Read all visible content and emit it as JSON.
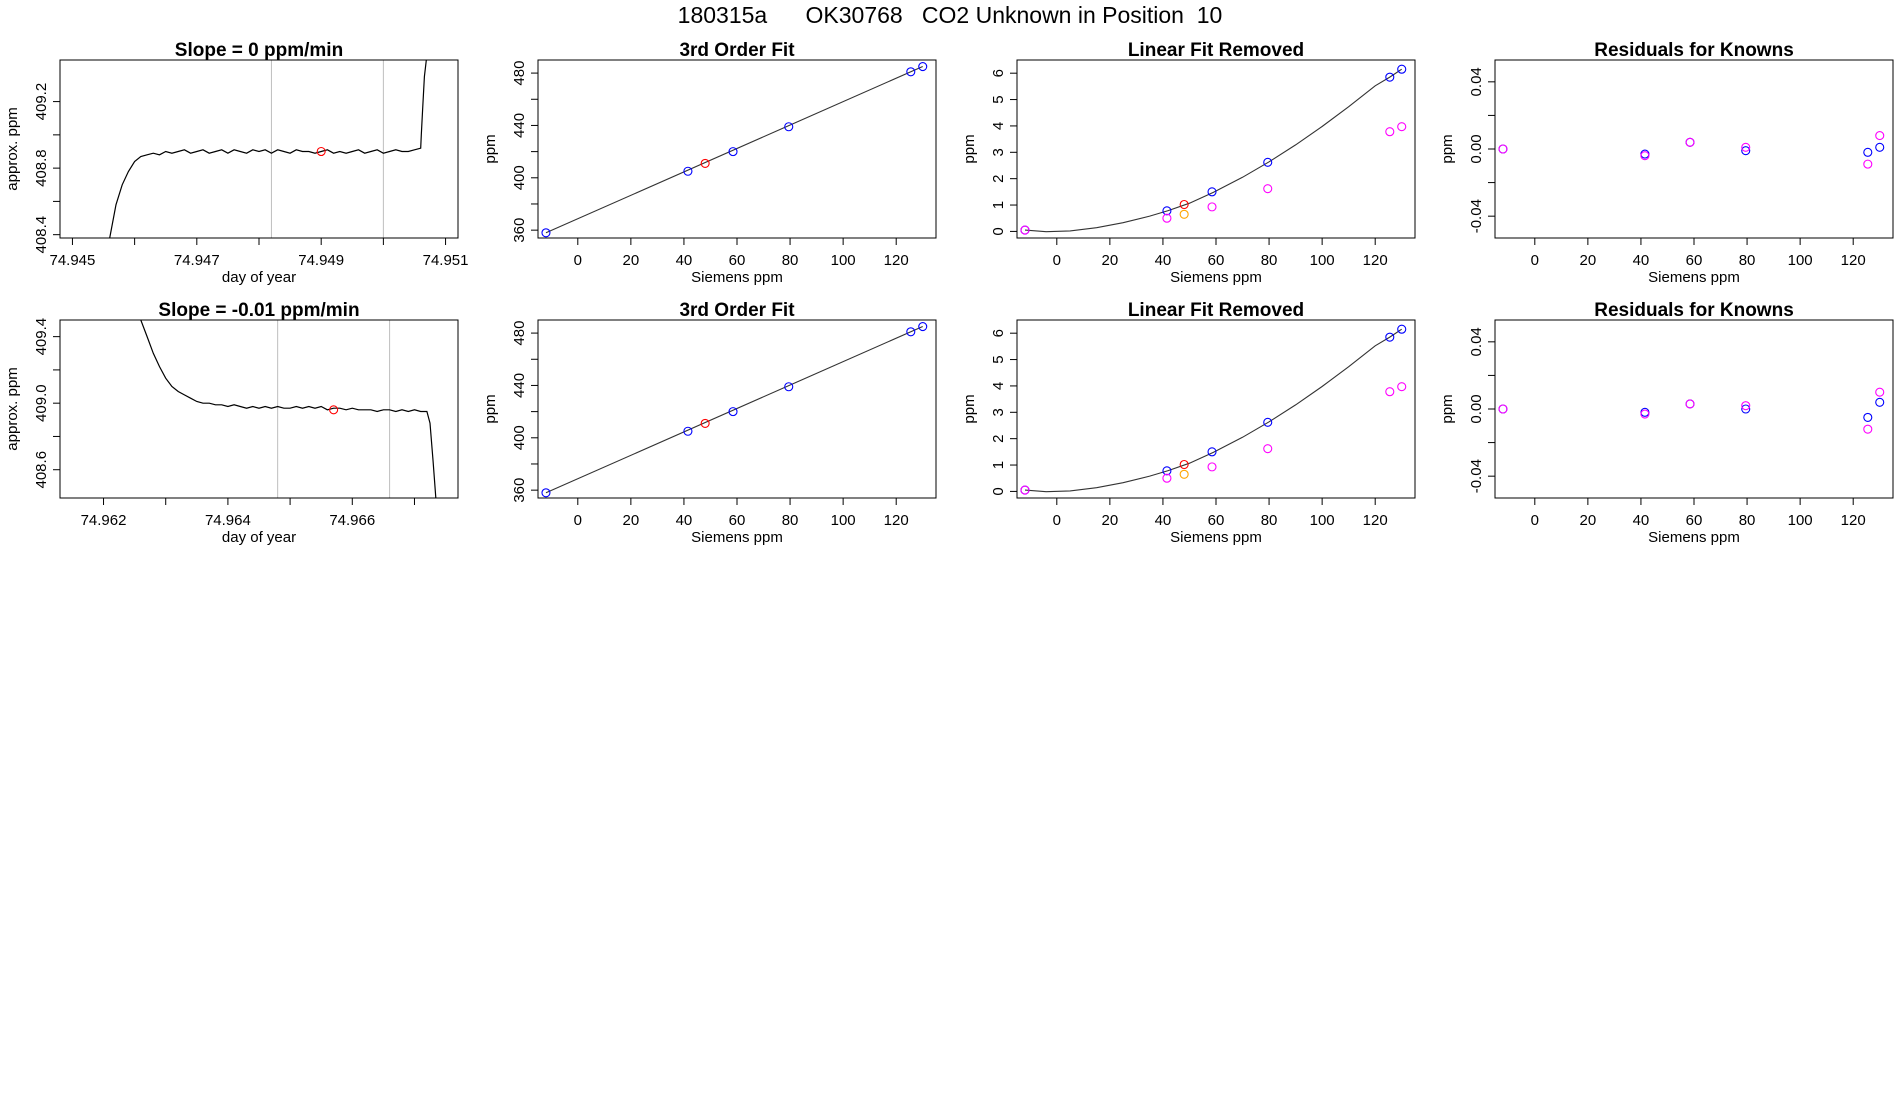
{
  "page": {
    "title": "180315a      OK30768   CO2 Unknown in Position  10"
  },
  "chart_data": [
    {
      "type": "line",
      "title": "Slope =  0  ppm/min",
      "xlabel": "day of year",
      "ylabel": "approx. ppm",
      "xlim": [
        74.9448,
        74.9512
      ],
      "ylim": [
        408.38,
        409.45
      ],
      "xticks": [
        74.945,
        74.947,
        74.949,
        74.951
      ],
      "xtick_labels": [
        "74.945",
        "74.947",
        "74.949",
        "74.951"
      ],
      "xticks_minor": [
        74.946,
        74.948,
        74.95
      ],
      "yticks": [
        408.4,
        408.8,
        409.2
      ],
      "ytick_labels": [
        "408.4",
        "408.8",
        "409.2"
      ],
      "yticks_minor": [
        408.6,
        409.0
      ],
      "vlines": [
        74.9482,
        74.95
      ],
      "vline_color": "#bebebe",
      "line_color": "#000000",
      "series": [
        {
          "x": [
            74.9456,
            74.9457,
            74.9458,
            74.9459,
            74.946,
            74.9461,
            74.9462,
            74.9463,
            74.9464,
            74.9465,
            74.9466,
            74.9467,
            74.9468,
            74.9469,
            74.947,
            74.9471,
            74.9472,
            74.9473,
            74.9474,
            74.9475,
            74.9476,
            74.9477,
            74.9478,
            74.9479,
            74.948,
            74.9481,
            74.9482,
            74.9483,
            74.9484,
            74.9485,
            74.9486,
            74.9487,
            74.9488,
            74.9489,
            74.949,
            74.9491,
            74.9492,
            74.9493,
            74.9494,
            74.9495,
            74.9496,
            74.9497,
            74.9498,
            74.9499,
            74.95,
            74.9501,
            74.9502,
            74.9503,
            74.9504,
            74.9505,
            74.9506,
            74.95061,
            74.95063,
            74.95066,
            74.9507
          ],
          "y": [
            408.38,
            408.58,
            408.7,
            408.78,
            408.84,
            408.87,
            408.88,
            408.89,
            408.88,
            408.9,
            408.89,
            408.9,
            408.91,
            408.89,
            408.9,
            408.91,
            408.89,
            408.9,
            408.91,
            408.89,
            408.91,
            408.9,
            408.89,
            408.91,
            408.9,
            408.91,
            408.89,
            408.91,
            408.9,
            408.89,
            408.91,
            408.9,
            408.9,
            408.89,
            408.9,
            408.91,
            408.89,
            408.9,
            408.89,
            408.9,
            408.91,
            408.89,
            408.9,
            408.91,
            408.89,
            408.9,
            408.91,
            408.9,
            408.9,
            408.91,
            408.92,
            409.0,
            409.15,
            409.35,
            409.48
          ]
        }
      ],
      "highlight_point": {
        "x": 74.949,
        "y": 408.9,
        "color": "#ff0000"
      }
    },
    {
      "type": "scatter",
      "title": "3rd Order Fit",
      "xlabel": "Siemens ppm",
      "ylabel": "ppm",
      "xlim": [
        -15,
        135
      ],
      "ylim": [
        354,
        490
      ],
      "xticks": [
        0,
        20,
        40,
        60,
        80,
        100,
        120
      ],
      "xtick_labels": [
        "0",
        "20",
        "40",
        "60",
        "80",
        "100",
        "120"
      ],
      "yticks": [
        360,
        400,
        440,
        480
      ],
      "ytick_labels": [
        "360",
        "400",
        "440",
        "480"
      ],
      "yticks_minor": [
        380,
        420,
        460
      ],
      "fit_curve": {
        "x": [
          -12,
          130
        ],
        "y": [
          358,
          485
        ]
      },
      "series": [
        {
          "color": "#0000ff",
          "x": [
            -12,
            41.5,
            58.5,
            79.5,
            125.5,
            130
          ],
          "y": [
            358,
            405,
            420,
            439,
            481,
            485
          ]
        },
        {
          "color": "#ff0000",
          "x": [
            48
          ],
          "y": [
            411
          ]
        }
      ]
    },
    {
      "type": "scatter",
      "title": "Linear Fit Removed",
      "xlabel": "Siemens ppm",
      "ylabel": "ppm",
      "xlim": [
        -15,
        135
      ],
      "ylim": [
        -0.25,
        6.5
      ],
      "xticks": [
        0,
        20,
        40,
        60,
        80,
        100,
        120
      ],
      "xtick_labels": [
        "0",
        "20",
        "40",
        "60",
        "80",
        "100",
        "120"
      ],
      "yticks": [
        0,
        1,
        2,
        3,
        4,
        5,
        6
      ],
      "ytick_labels": [
        "0",
        "1",
        "2",
        "3",
        "4",
        "5",
        "6"
      ],
      "fit_curve": {
        "x": [
          -12,
          -4,
          5,
          15,
          25,
          35,
          42,
          50,
          59,
          70,
          80,
          90,
          100,
          110,
          120,
          125.5,
          130
        ],
        "y": [
          0.05,
          -0.01,
          0.02,
          0.14,
          0.33,
          0.58,
          0.79,
          1.07,
          1.48,
          2.05,
          2.64,
          3.28,
          3.98,
          4.73,
          5.52,
          5.85,
          6.15
        ]
      },
      "series": [
        {
          "color": "#0000ff",
          "x": [
            -12,
            41.5,
            58.5,
            79.5,
            125.5,
            130
          ],
          "y": [
            0.05,
            0.78,
            1.5,
            2.62,
            5.85,
            6.15
          ]
        },
        {
          "color": "#ff00ff",
          "x": [
            -12,
            41.5,
            58.5,
            79.5,
            125.5,
            130
          ],
          "y": [
            0.05,
            0.5,
            0.93,
            1.62,
            3.78,
            3.97
          ]
        },
        {
          "color": "#ff0000",
          "x": [
            48
          ],
          "y": [
            1.02
          ]
        },
        {
          "color": "#ffa500",
          "x": [
            48
          ],
          "y": [
            0.65
          ]
        }
      ]
    },
    {
      "type": "scatter",
      "title": "Residuals for Knowns",
      "xlabel": "Siemens ppm",
      "ylabel": "ppm",
      "xlim": [
        -15,
        135
      ],
      "ylim": [
        -0.053,
        0.053
      ],
      "xticks": [
        0,
        20,
        40,
        60,
        80,
        100,
        120
      ],
      "xtick_labels": [
        "0",
        "20",
        "40",
        "60",
        "80",
        "100",
        "120"
      ],
      "yticks": [
        -0.04,
        0.0,
        0.04
      ],
      "ytick_labels": [
        "-0.04",
        "0.00",
        "0.04"
      ],
      "yticks_minor": [
        -0.02,
        0.02
      ],
      "series": [
        {
          "color": "#0000ff",
          "x": [
            -12,
            41.5,
            58.5,
            79.5,
            125.5,
            130
          ],
          "y": [
            0.0,
            -0.003,
            0.004,
            -0.001,
            -0.002,
            0.001
          ]
        },
        {
          "color": "#ff00ff",
          "x": [
            -12,
            41.5,
            58.5,
            79.5,
            125.5,
            130
          ],
          "y": [
            0.0,
            -0.004,
            0.004,
            0.001,
            -0.009,
            0.008
          ]
        }
      ]
    },
    {
      "type": "line",
      "title": "Slope =  -0.01  ppm/min",
      "xlabel": "day of year",
      "ylabel": "approx. ppm",
      "xlim": [
        74.9613,
        74.9677
      ],
      "ylim": [
        408.43,
        409.5
      ],
      "xticks": [
        74.962,
        74.964,
        74.966
      ],
      "xtick_labels": [
        "74.962",
        "74.964",
        "74.966"
      ],
      "xticks_minor": [
        74.963,
        74.965,
        74.967
      ],
      "yticks": [
        408.6,
        409.0,
        409.4
      ],
      "ytick_labels": [
        "408.6",
        "409.0",
        "409.4"
      ],
      "yticks_minor": [
        408.8,
        409.2
      ],
      "vlines": [
        74.9648,
        74.9666
      ],
      "vline_color": "#bebebe",
      "line_color": "#000000",
      "series": [
        {
          "x": [
            74.9626,
            74.9627,
            74.9628,
            74.9629,
            74.963,
            74.9631,
            74.9632,
            74.9633,
            74.9634,
            74.9635,
            74.9636,
            74.9637,
            74.9638,
            74.9639,
            74.964,
            74.9641,
            74.9642,
            74.9643,
            74.9644,
            74.9645,
            74.9646,
            74.9647,
            74.9648,
            74.9649,
            74.965,
            74.9651,
            74.9652,
            74.9653,
            74.9654,
            74.9655,
            74.9656,
            74.9657,
            74.9658,
            74.9659,
            74.966,
            74.9661,
            74.9662,
            74.9663,
            74.9664,
            74.9665,
            74.9666,
            74.9667,
            74.9668,
            74.9669,
            74.967,
            74.9671,
            74.9672,
            74.96725,
            74.9673,
            74.96735
          ],
          "y": [
            409.5,
            409.4,
            409.3,
            409.22,
            409.15,
            409.1,
            409.07,
            409.05,
            409.03,
            409.01,
            409.0,
            409.0,
            408.99,
            408.99,
            408.98,
            408.99,
            408.98,
            408.97,
            408.98,
            408.97,
            408.98,
            408.97,
            408.98,
            408.97,
            408.97,
            408.98,
            408.97,
            408.98,
            408.97,
            408.98,
            408.96,
            408.97,
            408.97,
            408.96,
            408.97,
            408.96,
            408.96,
            408.96,
            408.95,
            408.96,
            408.96,
            408.95,
            408.96,
            408.95,
            408.96,
            408.95,
            408.95,
            408.88,
            408.65,
            408.4
          ]
        }
      ],
      "highlight_point": {
        "x": 74.9657,
        "y": 408.96,
        "color": "#ff0000"
      }
    },
    {
      "type": "scatter",
      "title": "3rd Order Fit",
      "xlabel": "Siemens ppm",
      "ylabel": "ppm",
      "xlim": [
        -15,
        135
      ],
      "ylim": [
        354,
        490
      ],
      "xticks": [
        0,
        20,
        40,
        60,
        80,
        100,
        120
      ],
      "xtick_labels": [
        "0",
        "20",
        "40",
        "60",
        "80",
        "100",
        "120"
      ],
      "yticks": [
        360,
        400,
        440,
        480
      ],
      "ytick_labels": [
        "360",
        "400",
        "440",
        "480"
      ],
      "yticks_minor": [
        380,
        420,
        460
      ],
      "fit_curve": {
        "x": [
          -12,
          130
        ],
        "y": [
          358,
          485
        ]
      },
      "series": [
        {
          "color": "#0000ff",
          "x": [
            -12,
            41.5,
            58.5,
            79.5,
            125.5,
            130
          ],
          "y": [
            358,
            405,
            420,
            439,
            481,
            485
          ]
        },
        {
          "color": "#ff0000",
          "x": [
            48
          ],
          "y": [
            411
          ]
        }
      ]
    },
    {
      "type": "scatter",
      "title": "Linear Fit Removed",
      "xlabel": "Siemens ppm",
      "ylabel": "ppm",
      "xlim": [
        -15,
        135
      ],
      "ylim": [
        -0.25,
        6.5
      ],
      "xticks": [
        0,
        20,
        40,
        60,
        80,
        100,
        120
      ],
      "xtick_labels": [
        "0",
        "20",
        "40",
        "60",
        "80",
        "100",
        "120"
      ],
      "yticks": [
        0,
        1,
        2,
        3,
        4,
        5,
        6
      ],
      "ytick_labels": [
        "0",
        "1",
        "2",
        "3",
        "4",
        "5",
        "6"
      ],
      "fit_curve": {
        "x": [
          -12,
          -4,
          5,
          15,
          25,
          35,
          42,
          50,
          59,
          70,
          80,
          90,
          100,
          110,
          120,
          125.5,
          130
        ],
        "y": [
          0.05,
          -0.01,
          0.02,
          0.14,
          0.33,
          0.58,
          0.79,
          1.07,
          1.48,
          2.05,
          2.64,
          3.28,
          3.98,
          4.73,
          5.52,
          5.85,
          6.15
        ]
      },
      "series": [
        {
          "color": "#0000ff",
          "x": [
            -12,
            41.5,
            58.5,
            79.5,
            125.5,
            130
          ],
          "y": [
            0.05,
            0.78,
            1.5,
            2.62,
            5.85,
            6.15
          ]
        },
        {
          "color": "#ff00ff",
          "x": [
            -12,
            41.5,
            58.5,
            79.5,
            125.5,
            130
          ],
          "y": [
            0.05,
            0.5,
            0.93,
            1.62,
            3.78,
            3.97
          ]
        },
        {
          "color": "#ff0000",
          "x": [
            48
          ],
          "y": [
            1.02
          ]
        },
        {
          "color": "#ffa500",
          "x": [
            48
          ],
          "y": [
            0.65
          ]
        }
      ]
    },
    {
      "type": "scatter",
      "title": "Residuals for Knowns",
      "xlabel": "Siemens ppm",
      "ylabel": "ppm",
      "xlim": [
        -15,
        135
      ],
      "ylim": [
        -0.053,
        0.053
      ],
      "xticks": [
        0,
        20,
        40,
        60,
        80,
        100,
        120
      ],
      "xtick_labels": [
        "0",
        "20",
        "40",
        "60",
        "80",
        "100",
        "120"
      ],
      "yticks": [
        -0.04,
        0.0,
        0.04
      ],
      "ytick_labels": [
        "-0.04",
        "0.00",
        "0.04"
      ],
      "yticks_minor": [
        -0.02,
        0.02
      ],
      "series": [
        {
          "color": "#0000ff",
          "x": [
            -12,
            41.5,
            58.5,
            79.5,
            125.5,
            130
          ],
          "y": [
            0.0,
            -0.002,
            0.003,
            0.0,
            -0.005,
            0.004
          ]
        },
        {
          "color": "#ff00ff",
          "x": [
            -12,
            41.5,
            58.5,
            79.5,
            125.5,
            130
          ],
          "y": [
            0.0,
            -0.003,
            0.003,
            0.002,
            -0.012,
            0.01
          ]
        }
      ]
    }
  ]
}
